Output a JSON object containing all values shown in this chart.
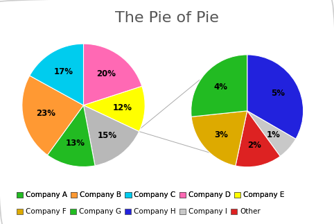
{
  "title": "The Pie of Pie",
  "left_pie": {
    "labels": [
      "Company D",
      "Company E",
      "Other",
      "Company A",
      "Company B",
      "Company C"
    ],
    "values": [
      20,
      12,
      15,
      13,
      23,
      17
    ],
    "colors": [
      "#ff69b4",
      "#ffff00",
      "#b8b8b8",
      "#22bb22",
      "#ff9933",
      "#00ccee"
    ],
    "pct_labels": [
      "20%",
      "12%",
      "15%",
      "13%",
      "23%",
      "17%"
    ],
    "startangle": 90,
    "counterclock": false
  },
  "right_pie": {
    "labels": [
      "Company H",
      "Company I",
      "Other",
      "Company F",
      "Company G"
    ],
    "values": [
      5,
      1,
      2,
      3,
      4
    ],
    "colors": [
      "#2222dd",
      "#c8c8c8",
      "#dd2222",
      "#ddaa00",
      "#22bb22"
    ],
    "pct_labels": [
      "5%",
      "1%",
      "2%",
      "3%",
      "4%"
    ],
    "startangle": 90,
    "counterclock": false
  },
  "legend_row1": [
    {
      "label": "Company A",
      "color": "#22bb22"
    },
    {
      "label": "Company B",
      "color": "#ff9933"
    },
    {
      "label": "Company C",
      "color": "#00ccee"
    },
    {
      "label": "Company D",
      "color": "#ff69b4"
    },
    {
      "label": "Company E",
      "color": "#ffff00"
    }
  ],
  "legend_row2": [
    {
      "label": "Company F",
      "color": "#ddaa00"
    },
    {
      "label": "Company G",
      "color": "#22bb22"
    },
    {
      "label": "Company H",
      "color": "#2222dd"
    },
    {
      "label": "Company I",
      "color": "#c8c8c8"
    },
    {
      "label": "Other",
      "color": "#dd2222"
    }
  ],
  "bg_color": "#ffffff",
  "border_color": "#cccccc",
  "title_fontsize": 16,
  "label_fontsize": 8.5,
  "legend_fontsize": 7.5
}
